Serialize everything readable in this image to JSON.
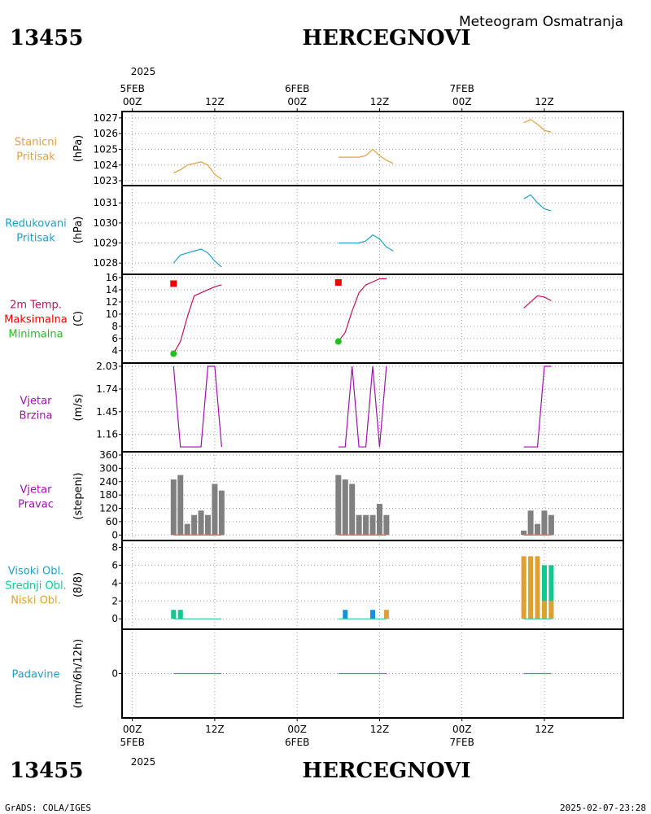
{
  "header": {
    "station_id": "13455",
    "station_name": "HERCEGNOVI",
    "subtitle": "Meteogram Osmatranja",
    "year": "2025"
  },
  "footer": {
    "station_id": "13455",
    "station_name": "HERCEGNOVI",
    "year": "2025",
    "credit": "GrADS: COLA/IGES",
    "timestamp": "2025-02-07-23:28"
  },
  "time_axis": {
    "ticks": [
      {
        "hour": 0,
        "top": [
          "5FEB",
          "00Z"
        ],
        "bottom": [
          "00Z",
          "5FEB"
        ]
      },
      {
        "hour": 12,
        "top": [
          "12Z"
        ],
        "bottom": [
          "12Z"
        ]
      },
      {
        "hour": 24,
        "top": [
          "6FEB",
          "00Z"
        ],
        "bottom": [
          "00Z",
          "6FEB"
        ]
      },
      {
        "hour": 36,
        "top": [
          "12Z"
        ],
        "bottom": [
          "12Z"
        ]
      },
      {
        "hour": 48,
        "top": [
          "7FEB",
          "00Z"
        ],
        "bottom": [
          "00Z",
          "7FEB"
        ]
      },
      {
        "hour": 60,
        "top": [
          "12Z"
        ],
        "bottom": [
          "12Z"
        ]
      }
    ],
    "range_hours": [
      -1.5,
      71.5
    ],
    "unit": "hours since 5FEB 00Z"
  },
  "colors": {
    "pressure": "#e0a040",
    "reduced": "#20a0c8",
    "temp": "#c0105a",
    "max": "#f00000",
    "min": "#20c020",
    "wind": "#a010b0",
    "dir_bar": "#808080",
    "dir_line": "#e07070",
    "high_cloud": "#1890e0",
    "mid_cloud": "#10c890",
    "low_cloud": "#e0a030",
    "precip": "#20a0c8"
  },
  "chart_data": [
    {
      "id": "pressure",
      "type": "line",
      "labels": [
        "Stanicni",
        "Pritisak"
      ],
      "ylabel": "(hPa)",
      "ylim": [
        1022.9,
        1027.2
      ],
      "ticks": [
        1023,
        1024,
        1025,
        1026,
        1027
      ],
      "tick_labels": [
        "1023",
        "1024",
        "1025",
        "1026",
        "1027"
      ],
      "segments": [
        [
          [
            6,
            1023.5
          ],
          [
            7,
            1023.7
          ],
          [
            8,
            1024.0
          ],
          [
            9,
            1024.1
          ],
          [
            10,
            1024.2
          ],
          [
            11,
            1024.0
          ],
          [
            12,
            1023.4
          ],
          [
            13,
            1023.1
          ]
        ],
        [
          [
            30,
            1024.5
          ],
          [
            31,
            1024.5
          ],
          [
            32,
            1024.5
          ],
          [
            33,
            1024.5
          ],
          [
            34,
            1024.6
          ],
          [
            35,
            1025.0
          ],
          [
            36,
            1024.6
          ],
          [
            37,
            1024.3
          ],
          [
            38,
            1024.1
          ]
        ],
        [
          [
            57,
            1026.7
          ],
          [
            58,
            1026.9
          ],
          [
            59,
            1026.6
          ],
          [
            60,
            1026.2
          ],
          [
            61,
            1026.1
          ]
        ]
      ]
    },
    {
      "id": "reduced",
      "type": "line",
      "labels": [
        "Redukovani",
        "Pritisak"
      ],
      "ylabel": "(hPa)",
      "ylim": [
        1027.6,
        1031.7
      ],
      "ticks": [
        1028,
        1029,
        1030,
        1031
      ],
      "tick_labels": [
        "1028",
        "1029",
        "1030",
        "1031"
      ],
      "segments": [
        [
          [
            6,
            1028.0
          ],
          [
            7,
            1028.4
          ],
          [
            8,
            1028.5
          ],
          [
            9,
            1028.6
          ],
          [
            10,
            1028.7
          ],
          [
            11,
            1028.5
          ],
          [
            12,
            1028.1
          ],
          [
            13,
            1027.8
          ]
        ],
        [
          [
            30,
            1029.0
          ],
          [
            31,
            1029.0
          ],
          [
            32,
            1029.0
          ],
          [
            33,
            1029.0
          ],
          [
            34,
            1029.1
          ],
          [
            35,
            1029.4
          ],
          [
            36,
            1029.2
          ],
          [
            37,
            1028.8
          ],
          [
            38,
            1028.6
          ]
        ],
        [
          [
            57,
            1031.2
          ],
          [
            58,
            1031.4
          ],
          [
            59,
            1031.0
          ],
          [
            60,
            1030.7
          ],
          [
            61,
            1030.6
          ]
        ]
      ]
    },
    {
      "id": "temp",
      "type": "line",
      "labels": [
        "2m Temp.",
        "Maksimalna",
        "Minimalna"
      ],
      "ylabel": "(C)",
      "ylim": [
        2.5,
        16.0
      ],
      "ticks": [
        4,
        6,
        8,
        10,
        12,
        14,
        16
      ],
      "tick_labels": [
        "4",
        "6",
        "8",
        "10",
        "12",
        "14",
        "16"
      ],
      "segments": [
        [
          [
            6,
            3.5
          ],
          [
            7,
            5.5
          ],
          [
            8,
            9.5
          ],
          [
            9,
            13.0
          ],
          [
            10,
            13.5
          ],
          [
            11,
            14.0
          ],
          [
            12,
            14.5
          ],
          [
            13,
            14.8
          ]
        ],
        [
          [
            30,
            5.5
          ],
          [
            31,
            7.0
          ],
          [
            32,
            10.5
          ],
          [
            33,
            13.5
          ],
          [
            34,
            14.8
          ],
          [
            35,
            15.3
          ],
          [
            36,
            15.8
          ],
          [
            37,
            15.8
          ]
        ],
        [
          [
            57,
            11.0
          ],
          [
            58,
            12.0
          ],
          [
            59,
            13.0
          ],
          [
            60,
            12.8
          ],
          [
            61,
            12.2
          ]
        ]
      ],
      "max_points": [
        [
          6,
          15.0
        ],
        [
          30,
          15.2
        ]
      ],
      "min_points": [
        [
          6,
          3.5
        ],
        [
          30,
          5.5
        ]
      ]
    },
    {
      "id": "wind_speed",
      "type": "line",
      "labels": [
        "Vjetar",
        "Brzina"
      ],
      "ylabel": "(m/s)",
      "ylim": [
        0.98,
        2.03
      ],
      "ticks": [
        1.16,
        1.45,
        1.74,
        2.03
      ],
      "tick_labels": [
        "1.16",
        "1.45",
        "1.74",
        "2.03"
      ],
      "segments": [
        [
          [
            6,
            2.03
          ],
          [
            7,
            1.0
          ],
          [
            8,
            1.0
          ],
          [
            9,
            1.0
          ],
          [
            10,
            1.0
          ],
          [
            11,
            2.03
          ],
          [
            12,
            2.03
          ],
          [
            13,
            1.0
          ]
        ],
        [
          [
            30,
            1.0
          ],
          [
            31,
            1.0
          ],
          [
            32,
            2.03
          ],
          [
            33,
            1.0
          ],
          [
            34,
            1.0
          ],
          [
            35,
            2.03
          ],
          [
            36,
            1.0
          ],
          [
            37,
            2.03
          ]
        ],
        [
          [
            57,
            1.0
          ],
          [
            58,
            1.0
          ],
          [
            59,
            1.0
          ],
          [
            60,
            2.03
          ],
          [
            61,
            2.03
          ]
        ]
      ]
    },
    {
      "id": "wind_dir",
      "type": "bar",
      "labels": [
        "Vjetar",
        "Pravac"
      ],
      "ylabel": "(stepeni)",
      "ylim": [
        -10,
        360
      ],
      "ticks": [
        0,
        60,
        120,
        180,
        240,
        300,
        360
      ],
      "tick_labels": [
        "0",
        "60",
        "120",
        "180",
        "240",
        "300",
        "360"
      ],
      "bars": [
        [
          6,
          250
        ],
        [
          7,
          270
        ],
        [
          8,
          50
        ],
        [
          9,
          90
        ],
        [
          10,
          110
        ],
        [
          11,
          90
        ],
        [
          12,
          230
        ],
        [
          13,
          200
        ],
        [
          30,
          270
        ],
        [
          31,
          250
        ],
        [
          32,
          230
        ],
        [
          33,
          90
        ],
        [
          34,
          90
        ],
        [
          35,
          90
        ],
        [
          36,
          140
        ],
        [
          37,
          90
        ],
        [
          57,
          20
        ],
        [
          58,
          110
        ],
        [
          59,
          50
        ],
        [
          60,
          110
        ],
        [
          61,
          90
        ]
      ],
      "baseline_segments": [
        [
          6,
          13
        ],
        [
          30,
          37
        ],
        [
          57,
          61
        ]
      ]
    },
    {
      "id": "clouds",
      "type": "bar",
      "labels": [
        "Visoki Obl.",
        "Srednji Obl.",
        "Niski Obl."
      ],
      "ylabel": "(8/8)",
      "ylim": [
        -0.8,
        8.4
      ],
      "ticks": [
        0,
        2,
        4,
        6,
        8
      ],
      "tick_labels": [
        "0",
        "2",
        "4",
        "6",
        "8"
      ],
      "series": [
        {
          "id": "high",
          "values": [
            [
              31,
              1
            ],
            [
              35,
              1
            ]
          ]
        },
        {
          "id": "mid",
          "values": [
            [
              6,
              1
            ],
            [
              7,
              1
            ],
            [
              60,
              6
            ],
            [
              61,
              6
            ]
          ]
        },
        {
          "id": "low",
          "values": [
            [
              37,
              1
            ],
            [
              57,
              7
            ],
            [
              58,
              7
            ],
            [
              59,
              7
            ],
            [
              60,
              2
            ],
            [
              61,
              2
            ]
          ]
        }
      ],
      "baseline_segments": [
        [
          6,
          13
        ],
        [
          30,
          37
        ],
        [
          57,
          61
        ]
      ]
    },
    {
      "id": "precip",
      "type": "line",
      "labels": [
        "Padavine"
      ],
      "ylabel": "(mm/6h/12h)",
      "ylim": [
        -1,
        1
      ],
      "ticks": [
        0
      ],
      "tick_labels": [
        "0"
      ],
      "segments": [
        [
          [
            6,
            0
          ],
          [
            13,
            0
          ]
        ],
        [
          [
            30,
            0
          ],
          [
            37,
            0
          ]
        ],
        [
          [
            57,
            0
          ],
          [
            61,
            0
          ]
        ]
      ]
    }
  ]
}
